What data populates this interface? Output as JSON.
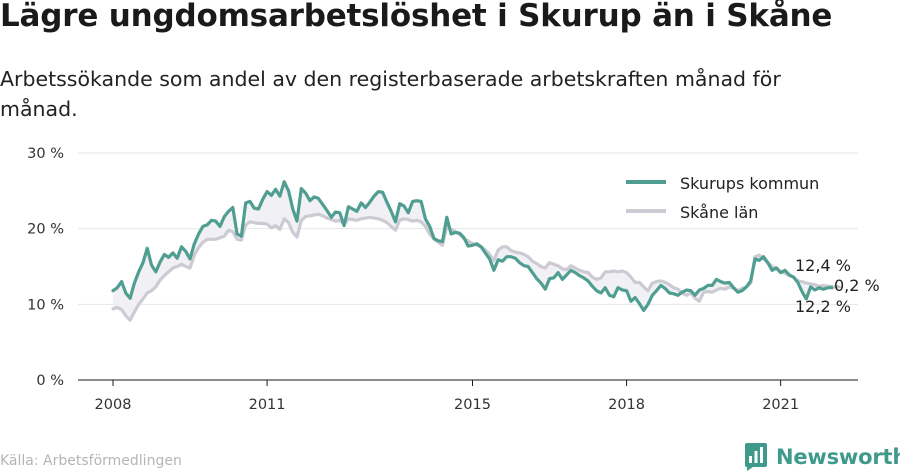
{
  "title": "Lägre ungdomsarbetslöshet i Skurup än i Skåne",
  "subtitle": "Arbetssökande som andel av den registerbaserade arbetskraften månad för månad.",
  "source": "Källa: Arbetsförmedlingen",
  "brand": "Newsworthy",
  "colors": {
    "skurup": "#4f9e91",
    "skane": "#cccad3",
    "grid": "#e6e6e6",
    "brand": "#3f9a8c"
  },
  "chart_data": {
    "type": "line",
    "x_start": "2008-01",
    "x_end": "2022-02",
    "ylim": [
      0,
      30
    ],
    "yticks": [
      0,
      10,
      20,
      30
    ],
    "ytick_labels": [
      "0 %",
      "10 %",
      "20 %",
      "30 %"
    ],
    "xtick_labels": [
      {
        "value": "2008",
        "year": 2008
      },
      {
        "value": "2011",
        "year": 2011
      },
      {
        "value": "2015",
        "year": 2015
      },
      {
        "value": "2018",
        "year": 2018
      },
      {
        "value": "2021",
        "year": 2021
      }
    ],
    "grid": true,
    "legend_position": "top-right",
    "series": [
      {
        "name": "Skurups kommun",
        "color": "#4f9e91",
        "values": [
          11.8,
          12.2,
          13.0,
          11.5,
          10.8,
          12.8,
          14.3,
          15.5,
          17.4,
          15.2,
          14.3,
          15.6,
          16.6,
          16.2,
          16.8,
          16.1,
          17.6,
          17.0,
          16.0,
          18.0,
          19.3,
          20.3,
          20.5,
          21.1,
          21.0,
          20.3,
          21.6,
          22.3,
          22.8,
          19.3,
          19.0,
          23.4,
          23.6,
          22.7,
          22.6,
          23.9,
          24.9,
          24.4,
          25.2,
          24.3,
          26.2,
          25.0,
          22.6,
          21.0,
          25.3,
          24.7,
          23.7,
          24.2,
          24.0,
          23.2,
          22.4,
          21.5,
          22.2,
          22.1,
          20.4,
          22.9,
          22.6,
          22.3,
          23.4,
          22.8,
          23.5,
          24.3,
          24.9,
          24.8,
          23.5,
          22.3,
          20.9,
          23.3,
          23.0,
          22.1,
          23.6,
          23.7,
          23.6,
          21.3,
          20.3,
          18.7,
          18.4,
          18.3,
          21.5,
          19.3,
          19.5,
          19.4,
          18.8,
          17.7,
          17.8,
          18.0,
          17.6,
          16.8,
          16.0,
          14.5,
          15.9,
          15.7,
          16.3,
          16.3,
          16.1,
          15.5,
          15.1,
          15.0,
          14.2,
          13.4,
          12.8,
          12.0,
          13.4,
          13.5,
          14.2,
          13.3,
          13.9,
          14.5,
          14.2,
          13.8,
          13.5,
          13.1,
          12.4,
          11.8,
          11.5,
          12.2,
          11.2,
          11.0,
          12.2,
          11.9,
          11.8,
          10.4,
          10.9,
          10.1,
          9.2,
          10.0,
          11.2,
          11.8,
          12.5,
          12.1,
          11.5,
          11.4,
          11.2,
          11.6,
          11.9,
          11.8,
          11.2,
          11.9,
          12.1,
          12.5,
          12.5,
          13.3,
          13.0,
          12.8,
          12.9,
          12.2,
          11.6,
          11.8,
          12.3,
          13.1,
          16.0,
          15.8,
          16.3,
          15.5,
          14.5,
          14.8,
          14.2,
          14.5,
          13.9,
          13.6,
          12.9,
          11.7,
          10.7,
          12.3,
          11.9,
          12.2,
          12.0,
          12.2,
          12.2
        ]
      },
      {
        "name": "Skåne län",
        "color": "#cccad3",
        "values": [
          9.4,
          9.6,
          9.3,
          8.5,
          7.9,
          9.0,
          10.0,
          10.7,
          11.5,
          11.8,
          12.3,
          13.2,
          13.8,
          14.3,
          14.8,
          15.0,
          15.3,
          15.0,
          14.8,
          16.5,
          17.5,
          18.2,
          18.6,
          18.6,
          18.6,
          18.8,
          19.0,
          19.8,
          19.6,
          18.6,
          18.5,
          20.5,
          20.9,
          20.8,
          20.7,
          20.7,
          20.6,
          20.1,
          20.4,
          19.9,
          21.3,
          20.8,
          19.5,
          18.9,
          21.1,
          21.6,
          21.7,
          21.8,
          21.9,
          21.7,
          21.4,
          21.2,
          21.0,
          21.1,
          20.6,
          21.3,
          21.2,
          21.1,
          21.3,
          21.4,
          21.5,
          21.4,
          21.3,
          21.1,
          20.8,
          20.3,
          19.8,
          21.1,
          21.3,
          21.2,
          21.0,
          21.1,
          20.9,
          20.3,
          19.3,
          18.6,
          18.2,
          17.8,
          20.3,
          19.9,
          19.6,
          19.2,
          18.7,
          18.4,
          18.0,
          17.8,
          17.6,
          17.2,
          16.6,
          15.8,
          17.2,
          17.6,
          17.6,
          17.1,
          16.9,
          16.8,
          16.6,
          16.3,
          15.7,
          15.4,
          15.0,
          14.8,
          15.5,
          15.3,
          15.1,
          14.7,
          14.6,
          15.1,
          14.8,
          14.5,
          14.3,
          14.2,
          13.6,
          13.3,
          13.5,
          14.3,
          14.3,
          14.4,
          14.3,
          14.4,
          14.2,
          13.6,
          12.9,
          12.9,
          12.3,
          11.8,
          12.8,
          13.0,
          13.1,
          12.9,
          12.6,
          12.2,
          12.0,
          11.5,
          11.2,
          11.5,
          10.8,
          10.4,
          11.6,
          11.7,
          11.6,
          11.9,
          12.1,
          12.0,
          12.3,
          12.1,
          11.8,
          12.1,
          12.3,
          12.8,
          16.3,
          16.5,
          16.0,
          15.5,
          15.0,
          14.8,
          14.3,
          14.1,
          13.8,
          13.6,
          13.1,
          13.0,
          12.8,
          12.7,
          12.6,
          12.4,
          12.5,
          12.4,
          12.4
        ]
      }
    ],
    "annotations": {
      "skurup_last": "12,2 %",
      "skane_last": "12,4 %",
      "difference": "0,2 %"
    }
  }
}
